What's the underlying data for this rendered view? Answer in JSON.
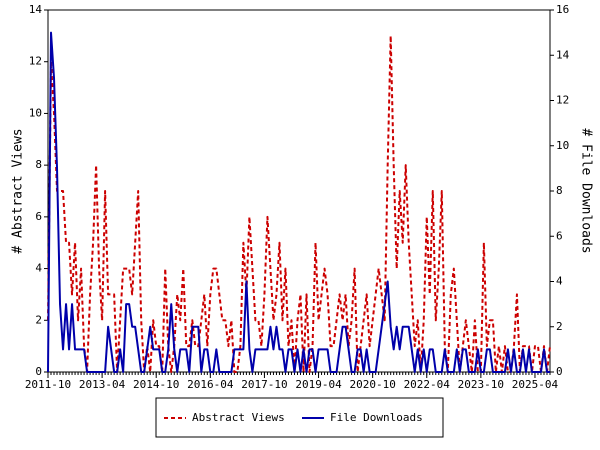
{
  "chart_data": {
    "type": "line",
    "y_label": "# Abstract Views",
    "y2_label": "# File Downloads",
    "x": [
      "2011-10",
      "2011-11",
      "2011-12",
      "2012-01",
      "2012-02",
      "2012-03",
      "2012-04",
      "2012-05",
      "2012-06",
      "2012-07",
      "2012-08",
      "2012-09",
      "2012-10",
      "2012-11",
      "2012-12",
      "2013-01",
      "2013-02",
      "2013-03",
      "2013-04",
      "2013-05",
      "2013-06",
      "2013-07",
      "2013-08",
      "2013-09",
      "2013-10",
      "2013-11",
      "2013-12",
      "2014-01",
      "2014-02",
      "2014-03",
      "2014-04",
      "2014-05",
      "2014-06",
      "2014-07",
      "2014-08",
      "2014-09",
      "2014-10",
      "2014-11",
      "2014-12",
      "2015-01",
      "2015-02",
      "2015-03",
      "2015-04",
      "2015-05",
      "2015-06",
      "2015-07",
      "2015-08",
      "2015-09",
      "2015-10",
      "2015-11",
      "2015-12",
      "2016-01",
      "2016-02",
      "2016-03",
      "2016-04",
      "2016-05",
      "2016-06",
      "2016-07",
      "2016-08",
      "2016-09",
      "2016-10",
      "2016-11",
      "2016-12",
      "2017-01",
      "2017-02",
      "2017-03",
      "2017-04",
      "2017-05",
      "2017-06",
      "2017-07",
      "2017-08",
      "2017-09",
      "2017-10",
      "2017-11",
      "2017-12",
      "2018-01",
      "2018-02",
      "2018-03",
      "2018-04",
      "2018-05",
      "2018-06",
      "2018-07",
      "2018-08",
      "2018-09",
      "2018-10",
      "2018-11",
      "2018-12",
      "2019-01",
      "2019-02",
      "2019-03",
      "2019-04",
      "2019-05",
      "2019-06",
      "2019-07",
      "2019-08",
      "2019-09",
      "2019-10",
      "2019-11",
      "2019-12",
      "2020-01",
      "2020-02",
      "2020-03",
      "2020-04",
      "2020-05",
      "2020-06",
      "2020-07",
      "2020-08",
      "2020-09",
      "2020-10",
      "2020-11",
      "2020-12",
      "2021-01",
      "2021-02",
      "2021-03",
      "2021-04",
      "2021-05",
      "2021-06",
      "2021-07",
      "2021-08",
      "2021-09",
      "2021-10",
      "2021-11",
      "2021-12",
      "2022-01",
      "2022-02",
      "2022-03",
      "2022-04",
      "2022-05",
      "2022-06",
      "2022-07",
      "2022-08",
      "2022-09",
      "2022-10",
      "2022-11",
      "2022-12",
      "2023-01",
      "2023-02",
      "2023-03",
      "2023-04",
      "2023-05",
      "2023-06",
      "2023-07",
      "2023-08",
      "2023-09",
      "2023-10",
      "2023-11",
      "2023-12",
      "2024-01",
      "2024-02",
      "2024-03",
      "2024-04",
      "2024-05",
      "2024-06",
      "2024-07",
      "2024-08",
      "2024-09",
      "2024-10",
      "2024-11",
      "2024-12",
      "2025-01",
      "2025-02",
      "2025-03",
      "2025-04",
      "2025-05",
      "2025-06",
      "2025-07",
      "2025-08",
      "2025-09"
    ],
    "xticks": [
      "2011-10",
      "2013-04",
      "2014-10",
      "2016-04",
      "2017-10",
      "2019-04",
      "2020-10",
      "2022-04",
      "2023-10",
      "2025-04"
    ],
    "ylim": [
      0,
      14
    ],
    "yticks": [
      0,
      2,
      4,
      6,
      8,
      10,
      12,
      14
    ],
    "y2lim": [
      0,
      16
    ],
    "y2ticks": [
      0,
      2,
      4,
      6,
      8,
      10,
      12,
      14,
      16
    ],
    "legend": "bottom",
    "series": [
      {
        "name": "Abstract Views",
        "color": "#cc0000",
        "dash": true,
        "values": [
          2,
          12,
          10,
          7,
          7,
          7,
          5,
          5,
          3,
          5,
          2,
          4,
          1,
          0,
          3,
          5,
          8,
          4,
          2,
          7,
          3,
          3,
          3,
          0,
          2,
          4,
          4,
          4,
          3,
          5,
          7,
          2,
          0,
          1,
          0,
          2,
          1,
          1,
          0,
          4,
          1,
          0,
          1,
          3,
          2,
          4,
          1,
          1,
          2,
          1,
          1,
          2,
          3,
          1,
          3,
          4,
          4,
          3,
          2,
          2,
          1,
          2,
          0,
          0,
          1,
          5,
          3,
          6,
          4,
          2,
          2,
          1,
          3,
          6,
          4,
          2,
          3,
          5,
          2,
          4,
          1,
          2,
          0,
          2,
          3,
          0,
          3,
          0,
          1,
          5,
          2,
          3,
          4,
          3,
          1,
          1,
          2,
          3,
          2,
          3,
          1,
          2,
          4,
          0,
          1,
          2,
          3,
          1,
          2,
          3,
          4,
          3,
          2,
          8,
          13,
          8,
          4,
          7,
          5,
          8,
          5,
          3,
          1,
          2,
          0,
          2,
          6,
          3,
          7,
          2,
          4,
          7,
          1,
          0,
          3,
          4,
          2,
          0,
          1,
          2,
          1,
          0,
          2,
          0,
          0,
          5,
          1,
          2,
          2,
          0,
          1,
          0,
          1,
          0,
          0,
          1,
          3,
          0,
          1,
          1,
          1,
          0,
          1,
          1,
          0,
          1,
          0,
          1
        ]
      },
      {
        "name": "File Downloads",
        "color": "#0000aa",
        "dash": false,
        "axis": "y2",
        "values": [
          0,
          15,
          13,
          9,
          3,
          1,
          3,
          1,
          3,
          1,
          1,
          1,
          1,
          0,
          0,
          0,
          0,
          0,
          0,
          0,
          2,
          1,
          0,
          0,
          1,
          0,
          3,
          3,
          2,
          2,
          1,
          0,
          0,
          1,
          2,
          1,
          1,
          1,
          0,
          0,
          1,
          3,
          1,
          0,
          1,
          1,
          1,
          0,
          2,
          2,
          2,
          0,
          1,
          1,
          0,
          0,
          1,
          0,
          0,
          0,
          0,
          0,
          1,
          1,
          1,
          1,
          4,
          1,
          0,
          1,
          1,
          1,
          1,
          1,
          2,
          1,
          2,
          1,
          1,
          0,
          1,
          1,
          0,
          1,
          0,
          1,
          0,
          1,
          1,
          0,
          1,
          1,
          1,
          1,
          0,
          0,
          0,
          1,
          2,
          2,
          1,
          0,
          0,
          1,
          1,
          0,
          1,
          0,
          0,
          0,
          1,
          2,
          3,
          4,
          2,
          1,
          2,
          1,
          2,
          2,
          2,
          1,
          0,
          1,
          0,
          1,
          0,
          1,
          1,
          0,
          0,
          0,
          1,
          0,
          0,
          0,
          1,
          0,
          1,
          1,
          0,
          0,
          0,
          1,
          0,
          0,
          1,
          1,
          0,
          0,
          0,
          0,
          0,
          1,
          0,
          1,
          0,
          0,
          1,
          0,
          1,
          0,
          0,
          0,
          0,
          1,
          0,
          0
        ]
      }
    ]
  }
}
